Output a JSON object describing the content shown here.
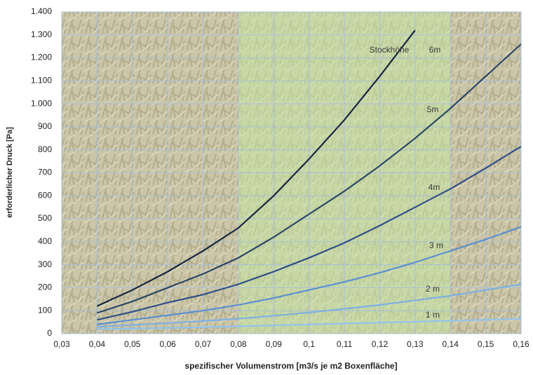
{
  "chart_data": {
    "type": "line",
    "xlabel": "spezifischer Volumenstrom [m3/s je m2 Boxenfläche]",
    "ylabel": "erforderlicher Druck [Pa]",
    "annotation": "Stockhöhe",
    "x": [
      0.04,
      0.05,
      0.06,
      0.07,
      0.08,
      0.09,
      0.1,
      0.11,
      0.12,
      0.13,
      0.14,
      0.15,
      0.16
    ],
    "series": [
      {
        "name": "6m",
        "color": "#18263f",
        "values": [
          120,
          190,
          270,
          360,
          460,
          600,
          760,
          930,
          1120,
          1320,
          null,
          null,
          null
        ]
      },
      {
        "name": "5m",
        "color": "#2b4764",
        "values": [
          90,
          140,
          200,
          260,
          330,
          420,
          520,
          620,
          730,
          850,
          980,
          1120,
          1260
        ]
      },
      {
        "name": "4m",
        "color": "#2f4f86",
        "values": [
          60,
          95,
          135,
          170,
          215,
          270,
          330,
          395,
          470,
          550,
          630,
          720,
          815
        ]
      },
      {
        "name": "3 m",
        "color": "#5b8fd0",
        "values": [
          40,
          60,
          80,
          100,
          125,
          155,
          190,
          225,
          265,
          310,
          360,
          410,
          465
        ]
      },
      {
        "name": "2 m",
        "color": "#7cb0e2",
        "values": [
          30,
          38,
          46,
          55,
          65,
          78,
          92,
          108,
          125,
          145,
          165,
          190,
          215
        ]
      },
      {
        "name": "1 m",
        "color": "#92c3ec",
        "values": [
          20,
          22,
          25,
          28,
          32,
          36,
          40,
          44,
          48,
          52,
          56,
          60,
          65
        ]
      }
    ],
    "xlim": [
      0.03,
      0.16
    ],
    "xticks": [
      {
        "value": 0.03,
        "label": "0,03"
      },
      {
        "value": 0.04,
        "label": "0,04"
      },
      {
        "value": 0.05,
        "label": "0,05"
      },
      {
        "value": 0.06,
        "label": "0,06"
      },
      {
        "value": 0.07,
        "label": "0,07"
      },
      {
        "value": 0.08,
        "label": "0,08"
      },
      {
        "value": 0.09,
        "label": "0,09"
      },
      {
        "value": 0.1,
        "label": "0,1"
      },
      {
        "value": 0.11,
        "label": "0,11"
      },
      {
        "value": 0.12,
        "label": "0,12"
      },
      {
        "value": 0.13,
        "label": "0,13"
      },
      {
        "value": 0.14,
        "label": "0,14"
      },
      {
        "value": 0.15,
        "label": "0,15"
      },
      {
        "value": 0.16,
        "label": "0,16"
      }
    ],
    "ylim": [
      0,
      1400
    ],
    "yticks": [
      0,
      100,
      200,
      300,
      400,
      500,
      600,
      700,
      800,
      900,
      {
        "value": 1000,
        "label": "1.000"
      },
      {
        "value": 1100,
        "label": "1.100"
      },
      {
        "value": 1200,
        "label": "1.200"
      },
      {
        "value": 1300,
        "label": "1.300"
      },
      {
        "value": 1400,
        "label": "1.400"
      }
    ],
    "highlight_xrange": [
      0.08,
      0.14
    ],
    "grid": true
  }
}
